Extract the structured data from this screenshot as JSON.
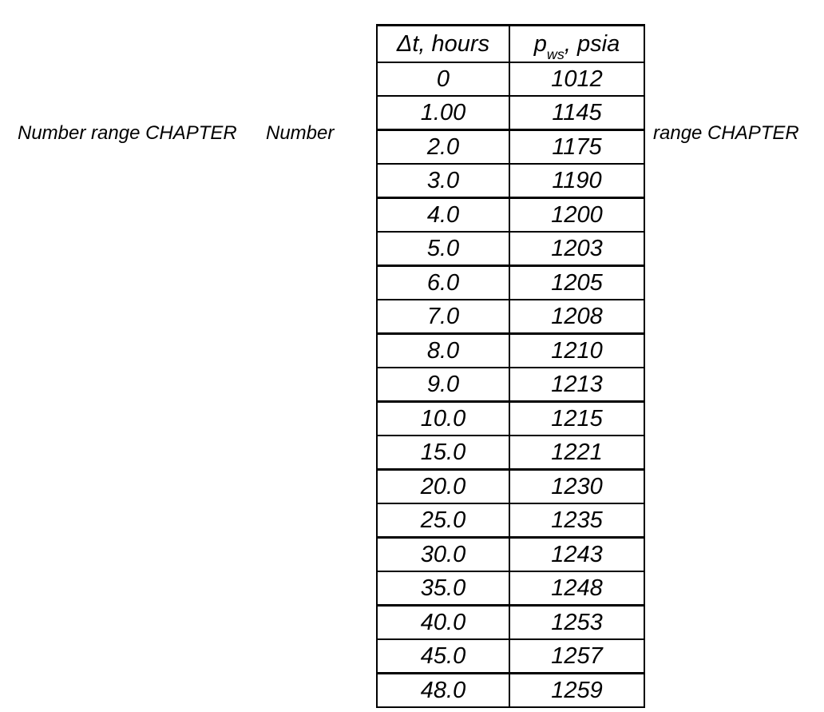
{
  "captions": {
    "left_first": "Number range CHAPTER",
    "left_second": "Number",
    "right": "range CHAPTER"
  },
  "table": {
    "col1_header": "Δt, hours",
    "col2_header": {
      "base": "p",
      "sub": "ws",
      "rest": ", psia"
    },
    "rows": [
      [
        "0",
        "1012"
      ],
      [
        "1.00",
        "1145"
      ],
      [
        "2.0",
        "1175"
      ],
      [
        "3.0",
        "1190"
      ],
      [
        "4.0",
        "1200"
      ],
      [
        "5.0",
        "1203"
      ],
      [
        "6.0",
        "1205"
      ],
      [
        "7.0",
        "1208"
      ],
      [
        "8.0",
        "1210"
      ],
      [
        "9.0",
        "1213"
      ],
      [
        "10.0",
        "1215"
      ],
      [
        "15.0",
        "1221"
      ],
      [
        "20.0",
        "1230"
      ],
      [
        "25.0",
        "1235"
      ],
      [
        "30.0",
        "1243"
      ],
      [
        "35.0",
        "1248"
      ],
      [
        "40.0",
        "1253"
      ],
      [
        "45.0",
        "1257"
      ],
      [
        "48.0",
        "1259"
      ]
    ]
  },
  "colors": {
    "background": "#ffffff",
    "text": "#000000",
    "border": "#000000"
  }
}
